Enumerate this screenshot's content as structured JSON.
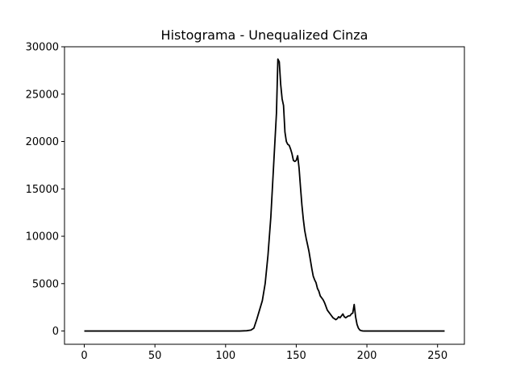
{
  "chart_data": {
    "type": "line",
    "title": "Histograma - Unequalized Cinza",
    "xlabel": "",
    "ylabel": "",
    "xlim": [
      -14,
      269
    ],
    "ylim": [
      -1400,
      30000
    ],
    "xticks": [
      0,
      50,
      100,
      150,
      200,
      250
    ],
    "yticks": [
      0,
      5000,
      10000,
      15000,
      20000,
      25000,
      30000
    ],
    "line_color": "#000000",
    "grid": false,
    "series": [
      {
        "x": [
          0,
          10,
          20,
          30,
          40,
          50,
          60,
          70,
          80,
          90,
          100,
          110,
          115,
          118,
          120,
          122,
          124,
          126,
          128,
          130,
          132,
          134,
          136,
          137,
          138,
          139,
          140,
          141,
          142,
          143,
          144,
          145,
          146,
          147,
          148,
          149,
          150,
          151,
          152,
          153,
          154,
          155,
          156,
          157,
          158,
          159,
          160,
          161,
          162,
          163,
          164,
          165,
          166,
          167,
          168,
          169,
          170,
          171,
          172,
          173,
          174,
          175,
          176,
          177,
          178,
          179,
          180,
          181,
          182,
          183,
          184,
          185,
          186,
          187,
          188,
          189,
          190,
          191,
          192,
          193,
          194,
          195,
          196,
          197,
          198,
          199,
          200,
          201,
          202,
          203,
          205,
          210,
          220,
          230,
          240,
          255
        ],
        "y": [
          0,
          0,
          0,
          0,
          0,
          0,
          0,
          0,
          0,
          0,
          0,
          0,
          30,
          100,
          300,
          1200,
          2200,
          3200,
          5000,
          8000,
          12000,
          17500,
          23000,
          28700,
          28400,
          26000,
          24500,
          23800,
          21000,
          20000,
          19700,
          19600,
          19200,
          18700,
          18000,
          17900,
          18000,
          18500,
          17200,
          15200,
          13300,
          11800,
          10600,
          9800,
          9100,
          8400,
          7500,
          6600,
          5800,
          5400,
          5100,
          4500,
          4200,
          3700,
          3500,
          3300,
          3000,
          2600,
          2200,
          2000,
          1800,
          1600,
          1400,
          1300,
          1200,
          1300,
          1500,
          1400,
          1600,
          1800,
          1500,
          1400,
          1500,
          1600,
          1600,
          1800,
          1900,
          2800,
          1500,
          700,
          300,
          100,
          40,
          10,
          0,
          0,
          0,
          0,
          0,
          0,
          0,
          0,
          0,
          0,
          0,
          0
        ]
      }
    ]
  }
}
